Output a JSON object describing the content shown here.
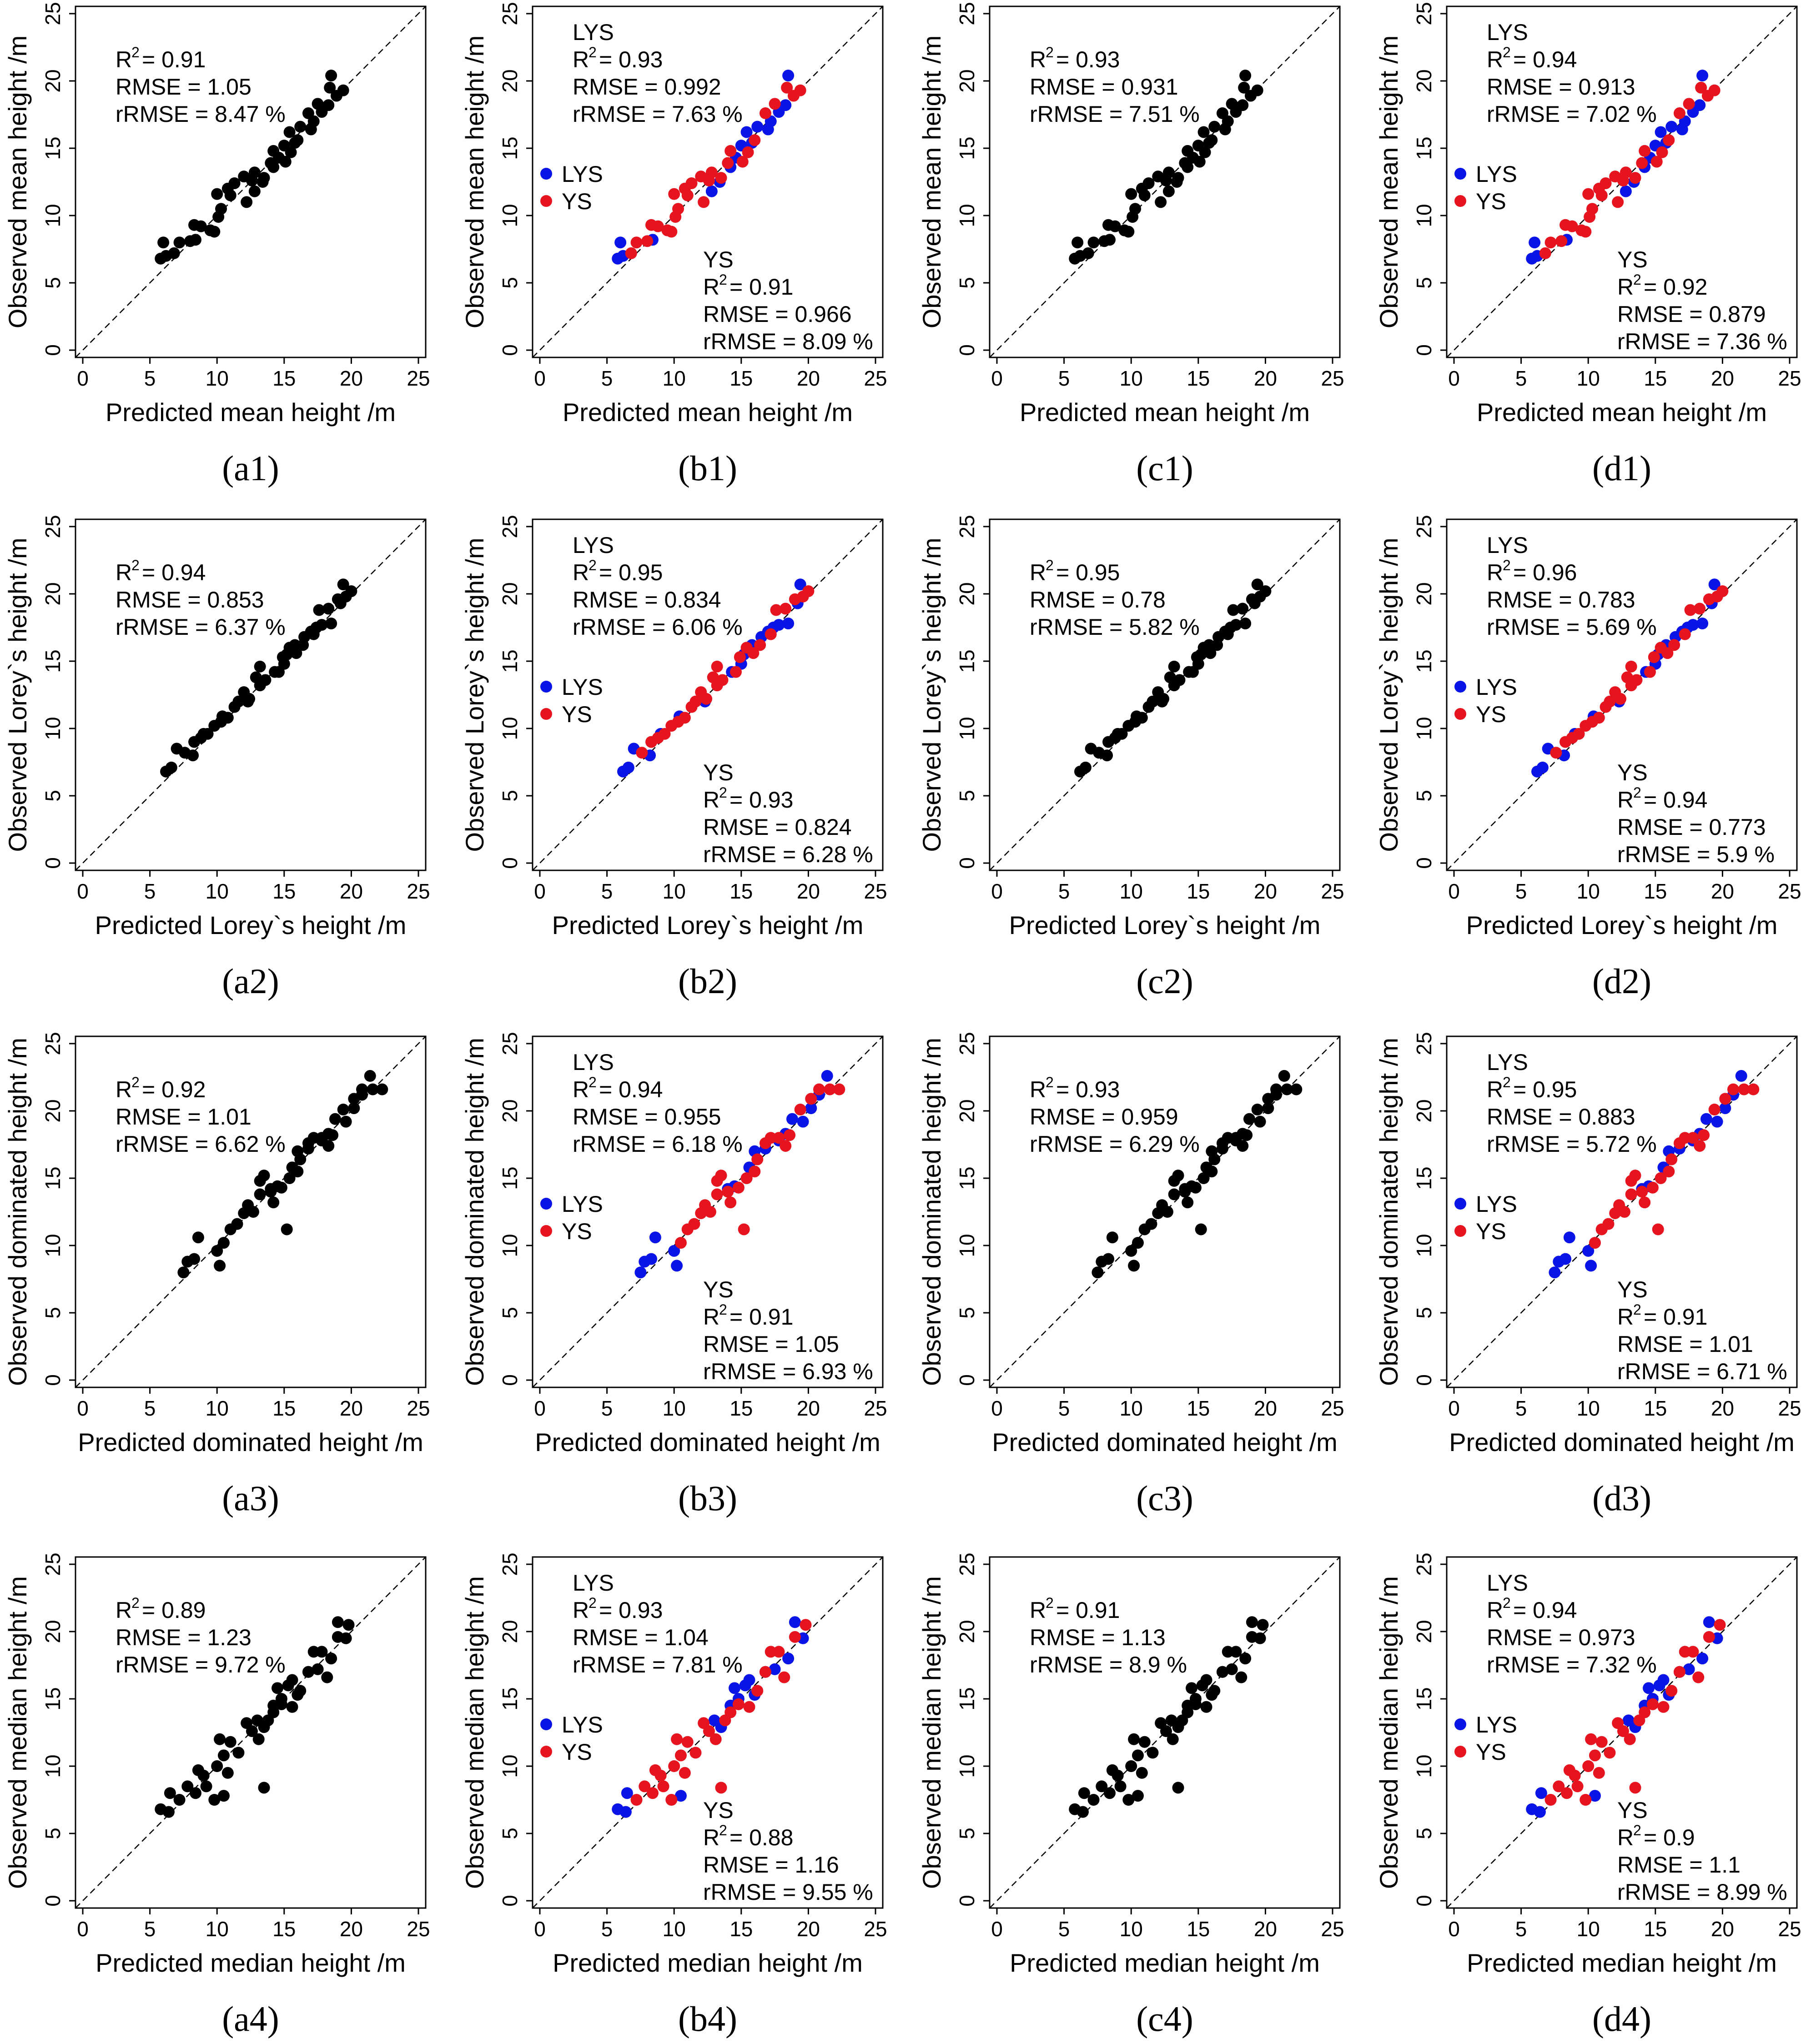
{
  "chart_data": {
    "type": "scatter",
    "figure": "Observed vs predicted tree height, 4x4 panel grid",
    "shared_axes": {
      "xlim": [
        0,
        25
      ],
      "ylim": [
        0,
        25
      ],
      "x_ticks": [
        "0",
        "5",
        "10",
        "15",
        "20",
        "25"
      ],
      "y_ticks": [
        "0",
        "5",
        "10",
        "15",
        "20",
        "25"
      ],
      "reference_line": "1:1 dashed"
    },
    "colors": {
      "all": "#000000",
      "LYS": "#0a14e6",
      "YS": "#e6141e"
    },
    "legend_entries": [
      "LYS",
      "YS"
    ],
    "rows": [
      {
        "xlabel": "Predicted mean height /m",
        "ylabel": "Observed mean height /m"
      },
      {
        "xlabel": "Predicted Lorey`s height /m",
        "ylabel": "Observed Lorey`s height /m"
      },
      {
        "xlabel": "Predicted dominated height /m",
        "ylabel": "Observed dominated height /m"
      },
      {
        "xlabel": "Predicted median height /m",
        "ylabel": "Observed median height /m"
      }
    ],
    "panels": [
      {
        "label": "(a1)",
        "row": 0,
        "col": 0,
        "mode": "single",
        "stats": {
          "r2": "= 0.91",
          "rmse": "RMSE = 1.05",
          "rrmse": "rRMSE = 8.47 %"
        }
      },
      {
        "label": "(b1)",
        "row": 0,
        "col": 1,
        "mode": "group",
        "lys": {
          "title": "LYS",
          "r2": "= 0.93",
          "rmse": "RMSE = 0.992",
          "rrmse": "rRMSE = 7.63 %"
        },
        "ys": {
          "title": "YS",
          "r2": "= 0.91",
          "rmse": "RMSE = 0.966",
          "rrmse": "rRMSE = 8.09 %"
        }
      },
      {
        "label": "(c1)",
        "row": 0,
        "col": 2,
        "mode": "single",
        "stats": {
          "r2": "= 0.93",
          "rmse": "RMSE = 0.931",
          "rrmse": "rRMSE = 7.51 %"
        }
      },
      {
        "label": "(d1)",
        "row": 0,
        "col": 3,
        "mode": "group",
        "lys": {
          "title": "LYS",
          "r2": "= 0.94",
          "rmse": "RMSE = 0.913",
          "rrmse": "rRMSE = 7.02 %"
        },
        "ys": {
          "title": "YS",
          "r2": "= 0.92",
          "rmse": "RMSE = 0.879",
          "rrmse": "rRMSE = 7.36 %"
        }
      },
      {
        "label": "(a2)",
        "row": 1,
        "col": 0,
        "mode": "single",
        "stats": {
          "r2": "= 0.94",
          "rmse": "RMSE = 0.853",
          "rrmse": "rRMSE = 6.37 %"
        }
      },
      {
        "label": "(b2)",
        "row": 1,
        "col": 1,
        "mode": "group",
        "lys": {
          "title": "LYS",
          "r2": "= 0.95",
          "rmse": "RMSE = 0.834",
          "rrmse": "rRMSE = 6.06 %"
        },
        "ys": {
          "title": "YS",
          "r2": "= 0.93",
          "rmse": "RMSE = 0.824",
          "rrmse": "rRMSE = 6.28 %"
        }
      },
      {
        "label": "(c2)",
        "row": 1,
        "col": 2,
        "mode": "single",
        "stats": {
          "r2": "= 0.95",
          "rmse": "RMSE = 0.78",
          "rrmse": "rRMSE = 5.82 %"
        }
      },
      {
        "label": "(d2)",
        "row": 1,
        "col": 3,
        "mode": "group",
        "lys": {
          "title": "LYS",
          "r2": "= 0.96",
          "rmse": "RMSE = 0.783",
          "rrmse": "rRMSE = 5.69 %"
        },
        "ys": {
          "title": "YS",
          "r2": "= 0.94",
          "rmse": "RMSE = 0.773",
          "rrmse": "rRMSE = 5.9 %"
        }
      },
      {
        "label": "(a3)",
        "row": 2,
        "col": 0,
        "mode": "single",
        "stats": {
          "r2": "= 0.92",
          "rmse": "RMSE = 1.01",
          "rrmse": "rRMSE = 6.62 %"
        }
      },
      {
        "label": "(b3)",
        "row": 2,
        "col": 1,
        "mode": "group",
        "lys": {
          "title": "LYS",
          "r2": "= 0.94",
          "rmse": "RMSE = 0.955",
          "rrmse": "rRMSE = 6.18 %"
        },
        "ys": {
          "title": "YS",
          "r2": "= 0.91",
          "rmse": "RMSE = 1.05",
          "rrmse": "rRMSE = 6.93 %"
        }
      },
      {
        "label": "(c3)",
        "row": 2,
        "col": 2,
        "mode": "single",
        "stats": {
          "r2": "= 0.93",
          "rmse": "RMSE = 0.959",
          "rrmse": "rRMSE = 6.29 %"
        }
      },
      {
        "label": "(d3)",
        "row": 2,
        "col": 3,
        "mode": "group",
        "lys": {
          "title": "LYS",
          "r2": "= 0.95",
          "rmse": "RMSE = 0.883",
          "rrmse": "rRMSE = 5.72 %"
        },
        "ys": {
          "title": "YS",
          "r2": "= 0.91",
          "rmse": "RMSE = 1.01",
          "rrmse": "rRMSE = 6.71 %"
        }
      },
      {
        "label": "(a4)",
        "row": 3,
        "col": 0,
        "mode": "single",
        "stats": {
          "r2": "= 0.89",
          "rmse": "RMSE = 1.23",
          "rrmse": "rRMSE = 9.72 %"
        }
      },
      {
        "label": "(b4)",
        "row": 3,
        "col": 1,
        "mode": "group",
        "lys": {
          "title": "LYS",
          "r2": "= 0.93",
          "rmse": "RMSE = 1.04",
          "rrmse": "rRMSE = 7.81 %"
        },
        "ys": {
          "title": "YS",
          "r2": "= 0.88",
          "rmse": "RMSE = 1.16",
          "rrmse": "rRMSE = 9.55 %"
        }
      },
      {
        "label": "(c4)",
        "row": 3,
        "col": 2,
        "mode": "single",
        "stats": {
          "r2": "= 0.91",
          "rmse": "RMSE = 1.13",
          "rrmse": "rRMSE = 8.9 %"
        }
      },
      {
        "label": "(d4)",
        "row": 3,
        "col": 3,
        "mode": "group",
        "lys": {
          "title": "LYS",
          "r2": "= 0.94",
          "rmse": "RMSE = 0.973",
          "rrmse": "rRMSE = 7.32 %"
        },
        "ys": {
          "title": "YS",
          "r2": "= 0.9",
          "rmse": "RMSE = 1.1",
          "rrmse": "rRMSE = 8.99 %"
        }
      }
    ],
    "series_by_row": [
      {
        "LYS": [
          [
            5.8,
            6.8
          ],
          [
            6.2,
            7.0
          ],
          [
            6.0,
            8.0
          ],
          [
            8.4,
            8.2
          ],
          [
            12.8,
            11.8
          ],
          [
            13.4,
            12.5
          ],
          [
            14.2,
            13.6
          ],
          [
            14.6,
            14.3
          ],
          [
            15.0,
            15.2
          ],
          [
            15.4,
            16.2
          ],
          [
            16.2,
            16.6
          ],
          [
            15.8,
            15.4
          ],
          [
            17.2,
            17.0
          ],
          [
            17.0,
            16.4
          ],
          [
            17.8,
            17.7
          ],
          [
            18.3,
            18.2
          ],
          [
            18.5,
            20.4
          ]
        ],
        "YS": [
          [
            6.8,
            7.2
          ],
          [
            7.2,
            8.0
          ],
          [
            8.0,
            8.1
          ],
          [
            8.3,
            9.3
          ],
          [
            8.8,
            9.2
          ],
          [
            9.5,
            8.9
          ],
          [
            9.8,
            8.8
          ],
          [
            10.1,
            9.9
          ],
          [
            10.3,
            10.5
          ],
          [
            10.0,
            11.6
          ],
          [
            10.8,
            12.0
          ],
          [
            11.0,
            11.5
          ],
          [
            11.3,
            12.4
          ],
          [
            12.0,
            12.9
          ],
          [
            12.6,
            12.6
          ],
          [
            12.2,
            11.0
          ],
          [
            12.8,
            13.2
          ],
          [
            13.5,
            12.8
          ],
          [
            14.0,
            13.9
          ],
          [
            14.2,
            14.8
          ],
          [
            15.1,
            14.0
          ],
          [
            15.5,
            14.7
          ],
          [
            16.0,
            15.6
          ],
          [
            16.8,
            17.6
          ],
          [
            17.5,
            18.3
          ],
          [
            18.4,
            19.5
          ],
          [
            18.9,
            18.9
          ],
          [
            19.4,
            19.3
          ]
        ]
      },
      {
        "LYS": [
          [
            6.2,
            6.8
          ],
          [
            6.6,
            7.1
          ],
          [
            7.0,
            8.5
          ],
          [
            8.2,
            8.0
          ],
          [
            9.0,
            9.6
          ],
          [
            10.4,
            10.9
          ],
          [
            12.3,
            12.0
          ],
          [
            14.3,
            14.2
          ],
          [
            15.0,
            14.8
          ],
          [
            15.2,
            15.5
          ],
          [
            15.8,
            16.2
          ],
          [
            16.5,
            16.8
          ],
          [
            17.0,
            17.2
          ],
          [
            17.4,
            17.5
          ],
          [
            17.8,
            17.7
          ],
          [
            18.5,
            17.8
          ],
          [
            19.4,
            20.7
          ],
          [
            19.2,
            19.3
          ]
        ],
        "YS": [
          [
            7.6,
            8.2
          ],
          [
            8.3,
            9.0
          ],
          [
            8.8,
            9.3
          ],
          [
            9.3,
            9.6
          ],
          [
            9.8,
            10.2
          ],
          [
            10.3,
            10.5
          ],
          [
            10.8,
            10.8
          ],
          [
            11.3,
            11.6
          ],
          [
            11.6,
            12.0
          ],
          [
            12.0,
            12.7
          ],
          [
            12.4,
            12.2
          ],
          [
            12.9,
            13.8
          ],
          [
            13.2,
            13.2
          ],
          [
            13.6,
            13.6
          ],
          [
            13.2,
            14.6
          ],
          [
            14.6,
            14.2
          ],
          [
            14.9,
            15.3
          ],
          [
            15.4,
            16.0
          ],
          [
            15.9,
            15.6
          ],
          [
            16.4,
            16.2
          ],
          [
            17.2,
            17.0
          ],
          [
            17.6,
            18.8
          ],
          [
            18.3,
            18.9
          ],
          [
            19.0,
            19.6
          ],
          [
            19.6,
            19.8
          ],
          [
            20.0,
            20.2
          ]
        ]
      },
      {
        "LYS": [
          [
            7.5,
            8.0
          ],
          [
            7.8,
            8.8
          ],
          [
            8.3,
            9.0
          ],
          [
            8.6,
            10.6
          ],
          [
            10.2,
            8.5
          ],
          [
            10.0,
            9.6
          ],
          [
            14.0,
            14.2
          ],
          [
            14.5,
            14.4
          ],
          [
            15.6,
            15.8
          ],
          [
            16.0,
            17.0
          ],
          [
            16.8,
            17.2
          ],
          [
            17.8,
            17.8
          ],
          [
            18.3,
            18.3
          ],
          [
            18.8,
            19.4
          ],
          [
            19.6,
            19.2
          ],
          [
            20.2,
            20.2
          ],
          [
            20.8,
            21.2
          ],
          [
            21.4,
            22.6
          ]
        ],
        "YS": [
          [
            10.5,
            10.2
          ],
          [
            11.0,
            11.2
          ],
          [
            11.5,
            11.6
          ],
          [
            12.0,
            12.4
          ],
          [
            12.3,
            13.0
          ],
          [
            12.7,
            12.5
          ],
          [
            13.2,
            13.8
          ],
          [
            13.2,
            14.8
          ],
          [
            13.5,
            15.2
          ],
          [
            14.0,
            14.0
          ],
          [
            14.2,
            13.2
          ],
          [
            14.8,
            14.3
          ],
          [
            15.2,
            11.2
          ],
          [
            15.4,
            15.0
          ],
          [
            16.0,
            15.5
          ],
          [
            16.2,
            16.4
          ],
          [
            16.8,
            17.6
          ],
          [
            17.2,
            18.0
          ],
          [
            17.8,
            18.0
          ],
          [
            18.3,
            17.4
          ],
          [
            18.6,
            18.2
          ],
          [
            19.4,
            20.1
          ],
          [
            20.2,
            20.9
          ],
          [
            20.8,
            21.6
          ],
          [
            21.6,
            21.6
          ],
          [
            22.3,
            21.6
          ]
        ]
      },
      {
        "LYS": [
          [
            5.8,
            6.8
          ],
          [
            6.4,
            6.6
          ],
          [
            6.5,
            8.0
          ],
          [
            10.5,
            7.8
          ],
          [
            13.0,
            13.4
          ],
          [
            13.5,
            12.9
          ],
          [
            14.2,
            14.5
          ],
          [
            14.5,
            15.8
          ],
          [
            14.8,
            15.0
          ],
          [
            15.3,
            16.0
          ],
          [
            15.6,
            16.4
          ],
          [
            16.0,
            15.3
          ],
          [
            16.8,
            17.0
          ],
          [
            17.5,
            17.2
          ],
          [
            18.5,
            18.0
          ],
          [
            19.0,
            20.7
          ],
          [
            19.6,
            19.5
          ]
        ],
        "YS": [
          [
            7.2,
            7.5
          ],
          [
            7.8,
            8.5
          ],
          [
            8.4,
            8.0
          ],
          [
            8.6,
            9.7
          ],
          [
            9.0,
            9.3
          ],
          [
            9.2,
            8.5
          ],
          [
            9.8,
            7.5
          ],
          [
            10.0,
            10.0
          ],
          [
            10.2,
            12.0
          ],
          [
            10.5,
            10.8
          ],
          [
            10.8,
            9.5
          ],
          [
            11.0,
            11.8
          ],
          [
            11.6,
            11.0
          ],
          [
            12.2,
            13.2
          ],
          [
            12.6,
            12.6
          ],
          [
            13.1,
            12.0
          ],
          [
            13.8,
            13.4
          ],
          [
            14.2,
            14.0
          ],
          [
            13.5,
            8.4
          ],
          [
            14.8,
            14.6
          ],
          [
            15.6,
            14.4
          ],
          [
            16.2,
            15.6
          ],
          [
            16.8,
            17.0
          ],
          [
            17.2,
            18.5
          ],
          [
            17.8,
            18.5
          ],
          [
            18.2,
            16.6
          ],
          [
            19.0,
            19.6
          ],
          [
            19.8,
            20.5
          ]
        ]
      }
    ]
  }
}
